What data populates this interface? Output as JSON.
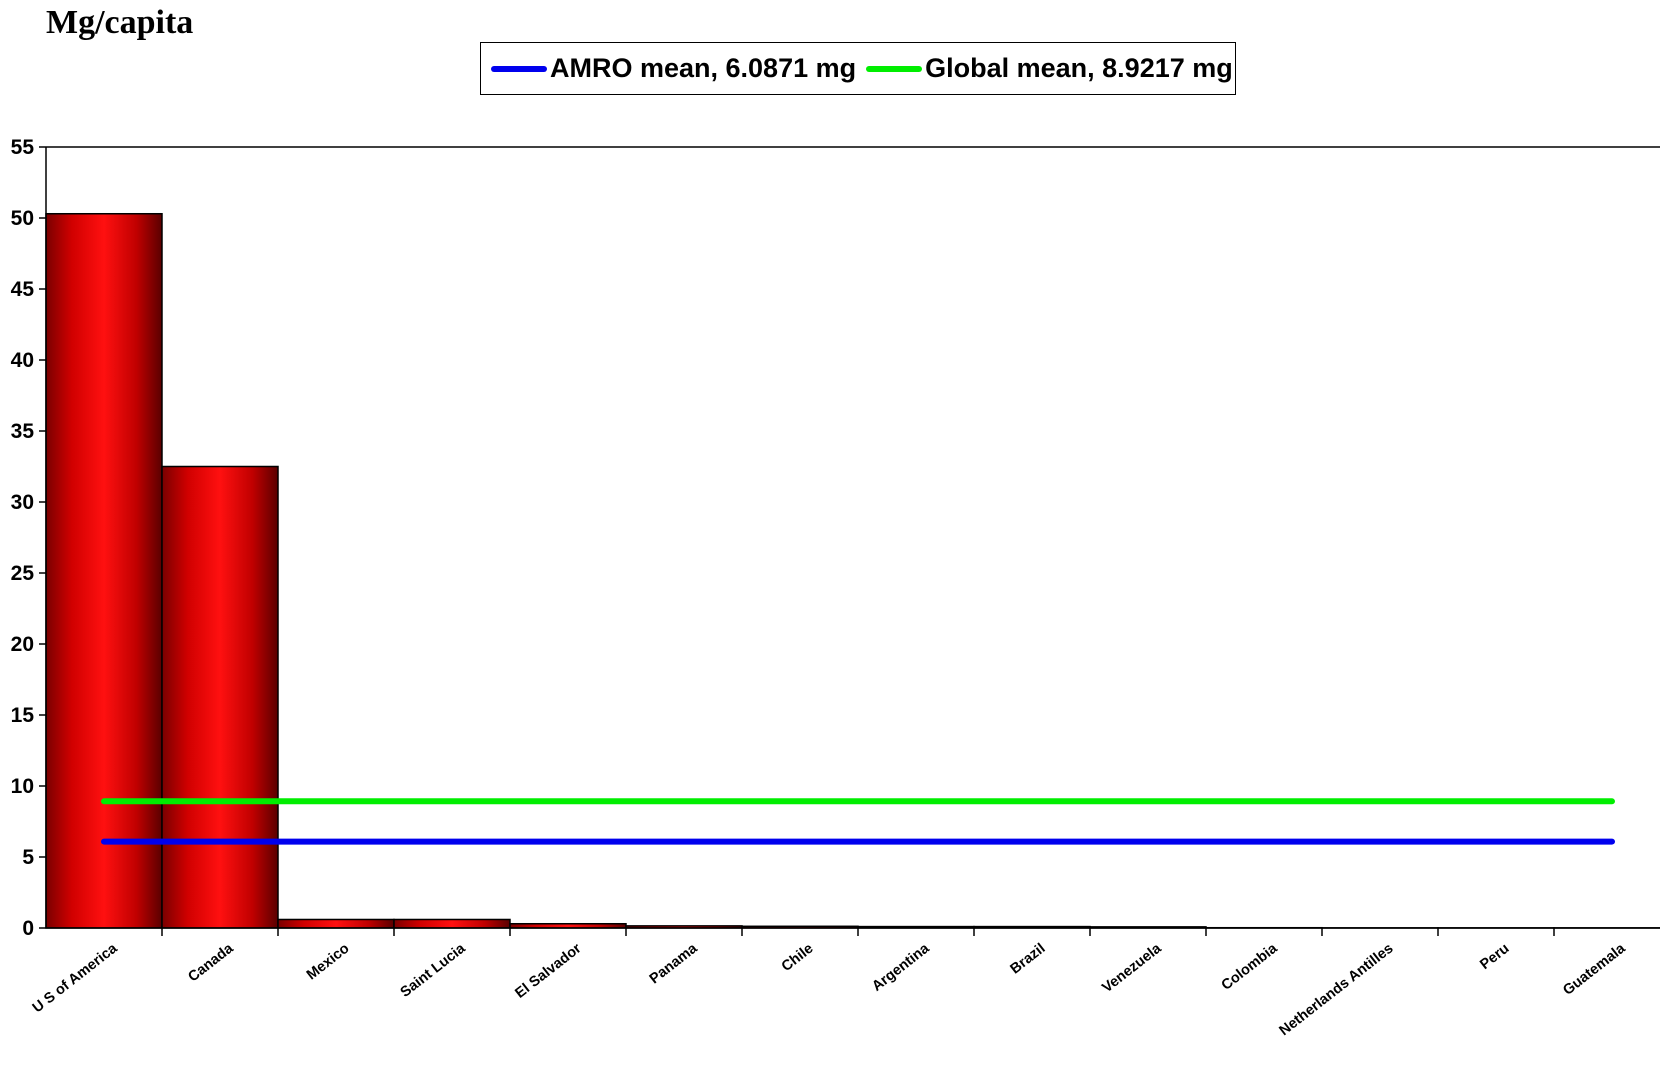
{
  "chart_data": {
    "type": "bar",
    "title": "Mg/capita",
    "categories": [
      "U S of America",
      "Canada",
      "Mexico",
      "Saint Lucia",
      "El Salvador",
      "Panama",
      "Chile",
      "Argentina",
      "Brazil",
      "Venezuela",
      "Colombia",
      "Netherlands Antilles",
      "Peru",
      "Guatemala"
    ],
    "series": [
      {
        "values": [
          50.3,
          32.5,
          0.6,
          0.6,
          0.3,
          0.15,
          0.12,
          0.1,
          0.1,
          0.08,
          0.02,
          0.01,
          0.01,
          0.01
        ],
        "color": "#ff0000"
      }
    ],
    "reference_lines": [
      {
        "name": "AMRO mean, 6.0871 mg",
        "value": 6.0871,
        "color": "#0000ee"
      },
      {
        "name": "Global mean, 8.9217 mg",
        "value": 8.9217,
        "color": "#00ee00"
      }
    ],
    "ylim": [
      0,
      55
    ],
    "yticks": [
      0,
      5,
      10,
      15,
      20,
      25,
      30,
      35,
      40,
      45,
      50,
      55
    ],
    "legend_position": "top-center",
    "grid": false
  }
}
